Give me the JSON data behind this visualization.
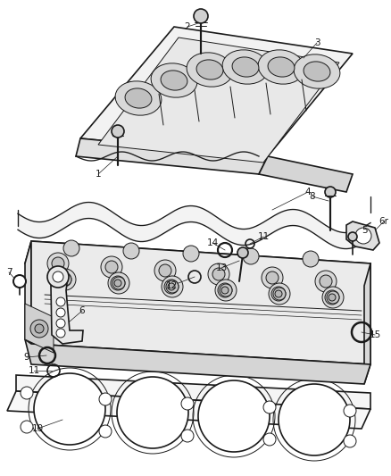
{
  "background": "#ffffff",
  "line_color": "#1a1a1a",
  "label_color": "#1a1a1a",
  "label_fontsize": 7.5,
  "lw_main": 1.2,
  "lw_thin": 0.7,
  "lw_label": 0.5,
  "fig_w": 4.38,
  "fig_h": 5.33,
  "dpi": 100
}
